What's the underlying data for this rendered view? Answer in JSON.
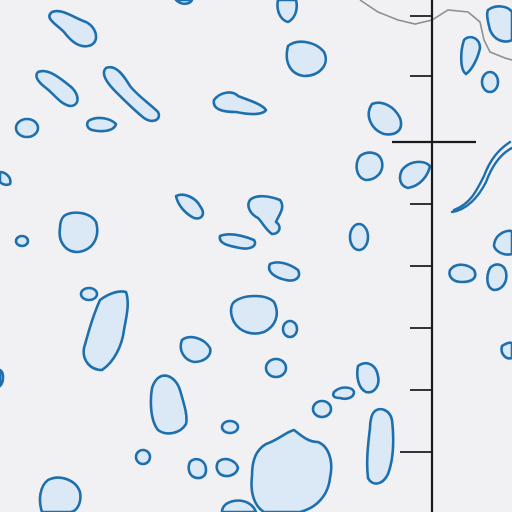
{
  "map": {
    "type": "topographic map excerpt",
    "background_color": "#f1f1f3",
    "water_fill_color": "#dbe8f5",
    "water_outline_color": "#1d6fae",
    "boundary_line_color": "#8e8e8e",
    "line_feature_color": "#1a1a1a",
    "features": [
      "lakes",
      "stream",
      "boundary-line",
      "railway-with-ties",
      "road-crossing"
    ],
    "labels": []
  }
}
